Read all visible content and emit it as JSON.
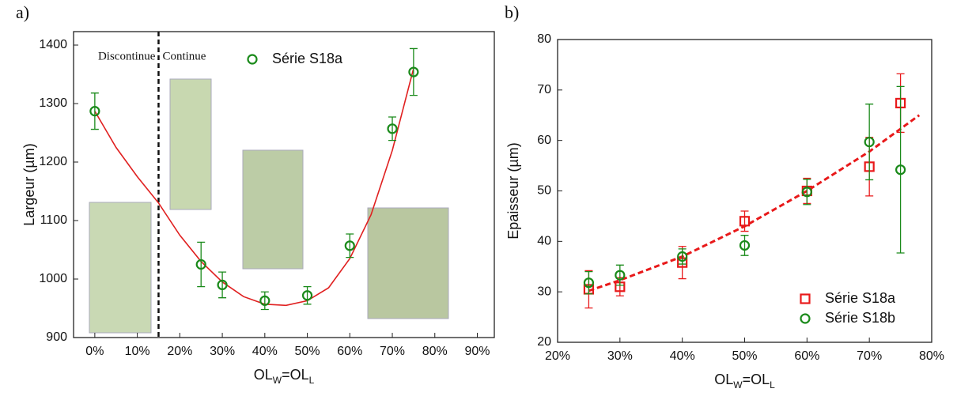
{
  "chart_data": [
    {
      "type": "scatter",
      "title": "a)",
      "ylabel": "Largeur (µm)",
      "xlabel": [
        "OL",
        "W",
        "=OL",
        "L"
      ],
      "xlim": [
        -5,
        94
      ],
      "ylim": [
        900,
        1423
      ],
      "xticks": [
        {
          "value": 0,
          "label": "0%"
        },
        {
          "value": 10,
          "label": "10%"
        },
        {
          "value": 20,
          "label": "20%"
        },
        {
          "value": 30,
          "label": "30%"
        },
        {
          "value": 40,
          "label": "40%"
        },
        {
          "value": 50,
          "label": "50%"
        },
        {
          "value": 60,
          "label": "60%"
        },
        {
          "value": 70,
          "label": "70%"
        },
        {
          "value": 80,
          "label": "80%"
        },
        {
          "value": 90,
          "label": "90%"
        }
      ],
      "yticks": [
        900,
        1000,
        1100,
        1200,
        1300,
        1400
      ],
      "x": [
        0,
        25,
        30,
        40,
        50,
        60,
        70,
        75
      ],
      "series": [
        {
          "name": "Série S18a",
          "color": "#1a8a1a",
          "marker": "circle",
          "values": [
            1287,
            1025,
            990,
            963,
            972,
            1057,
            1257,
            1354
          ],
          "errors": [
            31,
            38,
            22,
            15,
            15,
            20,
            20,
            40
          ]
        }
      ],
      "fit": {
        "color": "#e02020",
        "dashed": false,
        "x": [
          0,
          5,
          10,
          15,
          20,
          25,
          30,
          35,
          40,
          45,
          50,
          55,
          60,
          65,
          70,
          75
        ],
        "values": [
          1287,
          1225,
          1175,
          1130,
          1075,
          1030,
          995,
          970,
          957,
          955,
          963,
          985,
          1035,
          1110,
          1220,
          1360
        ]
      },
      "divider_x": 15,
      "annotations": [
        "Discontinue",
        "Continue"
      ],
      "legend": "upper center"
    },
    {
      "type": "scatter",
      "title": "b)",
      "ylabel": "Epaisseur (µm)",
      "xlabel": [
        "OL",
        "W",
        "=OL",
        "L"
      ],
      "xlim": [
        20,
        80
      ],
      "ylim": [
        20,
        80
      ],
      "xticks": [
        {
          "value": 20,
          "label": "20%"
        },
        {
          "value": 30,
          "label": "30%"
        },
        {
          "value": 40,
          "label": "40%"
        },
        {
          "value": 50,
          "label": "50%"
        },
        {
          "value": 60,
          "label": "60%"
        },
        {
          "value": 70,
          "label": "70%"
        },
        {
          "value": 80,
          "label": "80%"
        }
      ],
      "yticks": [
        20,
        30,
        40,
        50,
        60,
        70,
        80
      ],
      "x": [
        25,
        30,
        40,
        50,
        60,
        70,
        75
      ],
      "series": [
        {
          "name": "Série S18a",
          "color": "#e8191a",
          "marker": "square",
          "values": [
            30.5,
            31,
            35.8,
            44,
            50,
            54.8,
            67.4
          ],
          "errors": [
            3.7,
            1.8,
            3.2,
            2,
            2.5,
            5.8,
            5.8
          ]
        },
        {
          "name": "Série S18b",
          "color": "#1a8a1a",
          "marker": "circle",
          "values": [
            31.8,
            33.3,
            37,
            39.2,
            49.8,
            59.7,
            54.2
          ],
          "errors": [
            2.2,
            2,
            1.5,
            2,
            2.5,
            7.5,
            16.5
          ]
        }
      ],
      "fit": {
        "color": "#e8191a",
        "dashed": true,
        "x": [
          25,
          30,
          40,
          50,
          60,
          70,
          78
        ],
        "values": [
          30.2,
          32.3,
          37,
          43,
          50,
          57.8,
          65
        ]
      },
      "legend": "lower right"
    }
  ]
}
